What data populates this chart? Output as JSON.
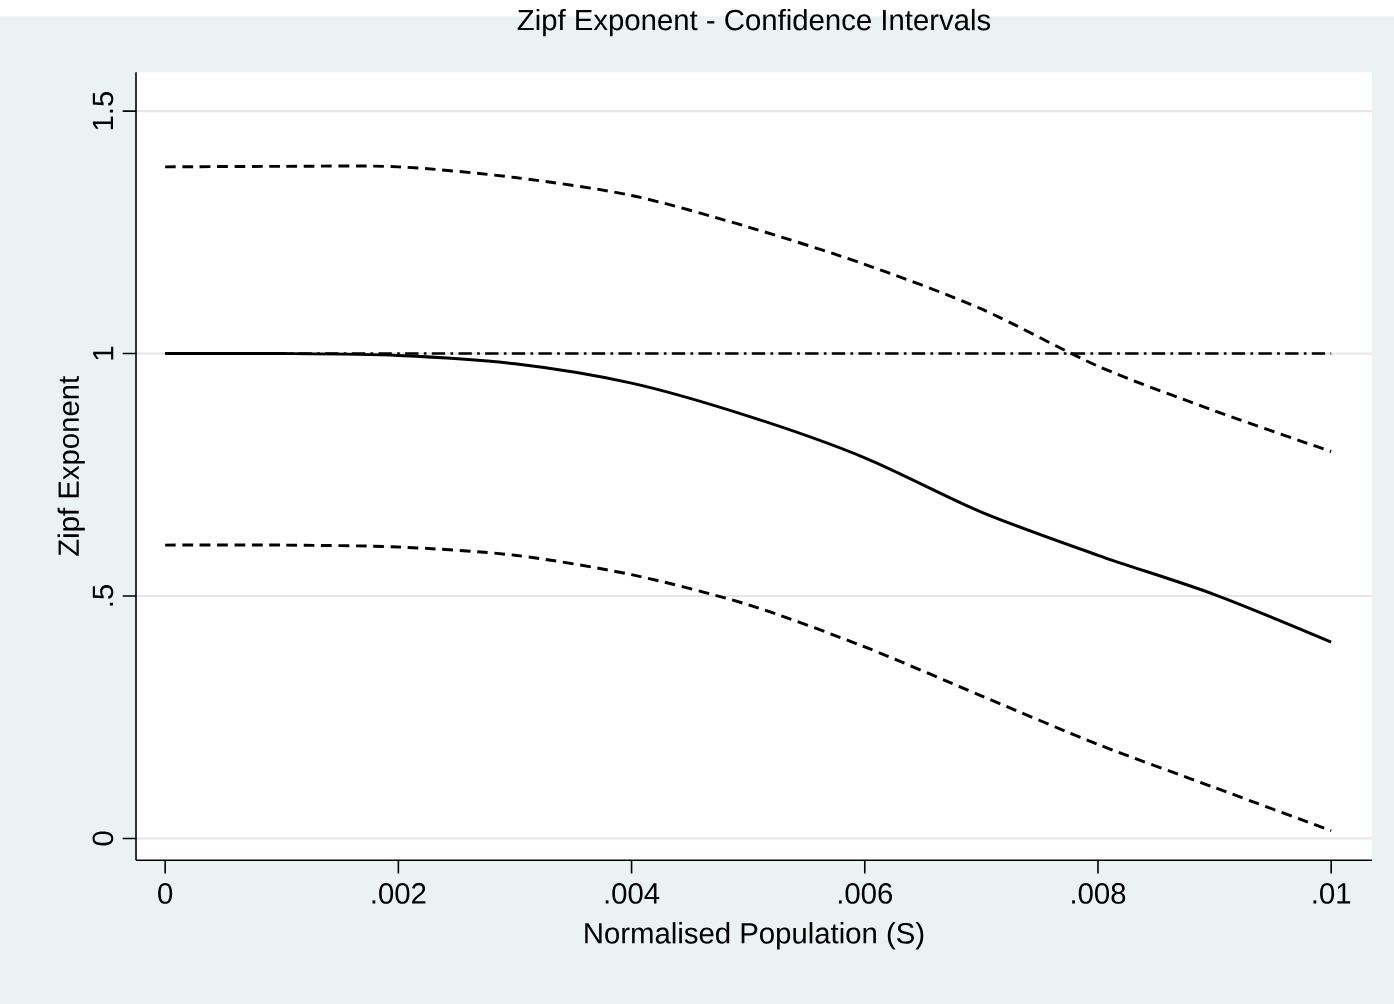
{
  "chart_data": {
    "type": "line",
    "title": "Zipf Exponent - Confidence Intervals",
    "xlabel": "Normalised Population (S)",
    "ylabel": "Zipf Exponent",
    "x": [
      0,
      0.001,
      0.002,
      0.003,
      0.004,
      0.005,
      0.006,
      0.007,
      0.008,
      0.009,
      0.01
    ],
    "series": [
      {
        "color": "#000000",
        "line_style": "dashed",
        "values": [
          1.385,
          1.386,
          1.385,
          1.363,
          1.326,
          1.261,
          1.184,
          1.092,
          0.974,
          0.882,
          0.798
        ]
      },
      {
        "color": "#000000",
        "line_style": "solid",
        "values": [
          1.0,
          1.0,
          0.996,
          0.979,
          0.939,
          0.871,
          0.785,
          0.673,
          0.584,
          0.503,
          0.405
        ]
      },
      {
        "color": "#000000",
        "line_style": "dashed",
        "values": [
          0.605,
          0.605,
          0.601,
          0.584,
          0.544,
          0.482,
          0.395,
          0.294,
          0.194,
          0.105,
          0.016
        ]
      }
    ],
    "ref_lines": [
      {
        "axis": "y",
        "value": 1,
        "color": "#000000",
        "line_style": "dashdot"
      }
    ],
    "xlim": [
      -0.00025,
      0.01035
    ],
    "ylim": [
      -0.045,
      1.58
    ],
    "xticks": [
      0,
      {
        "value": 0.002,
        "label": ".002"
      },
      {
        "value": 0.004,
        "label": ".004"
      },
      {
        "value": 0.006,
        "label": ".006"
      },
      {
        "value": 0.008,
        "label": ".008"
      },
      {
        "value": 0.01,
        "label": ".01"
      }
    ],
    "yticks": [
      0,
      {
        "value": 0.5,
        "label": ".5"
      },
      1,
      1.5
    ],
    "grid": "y",
    "marker": "none"
  }
}
